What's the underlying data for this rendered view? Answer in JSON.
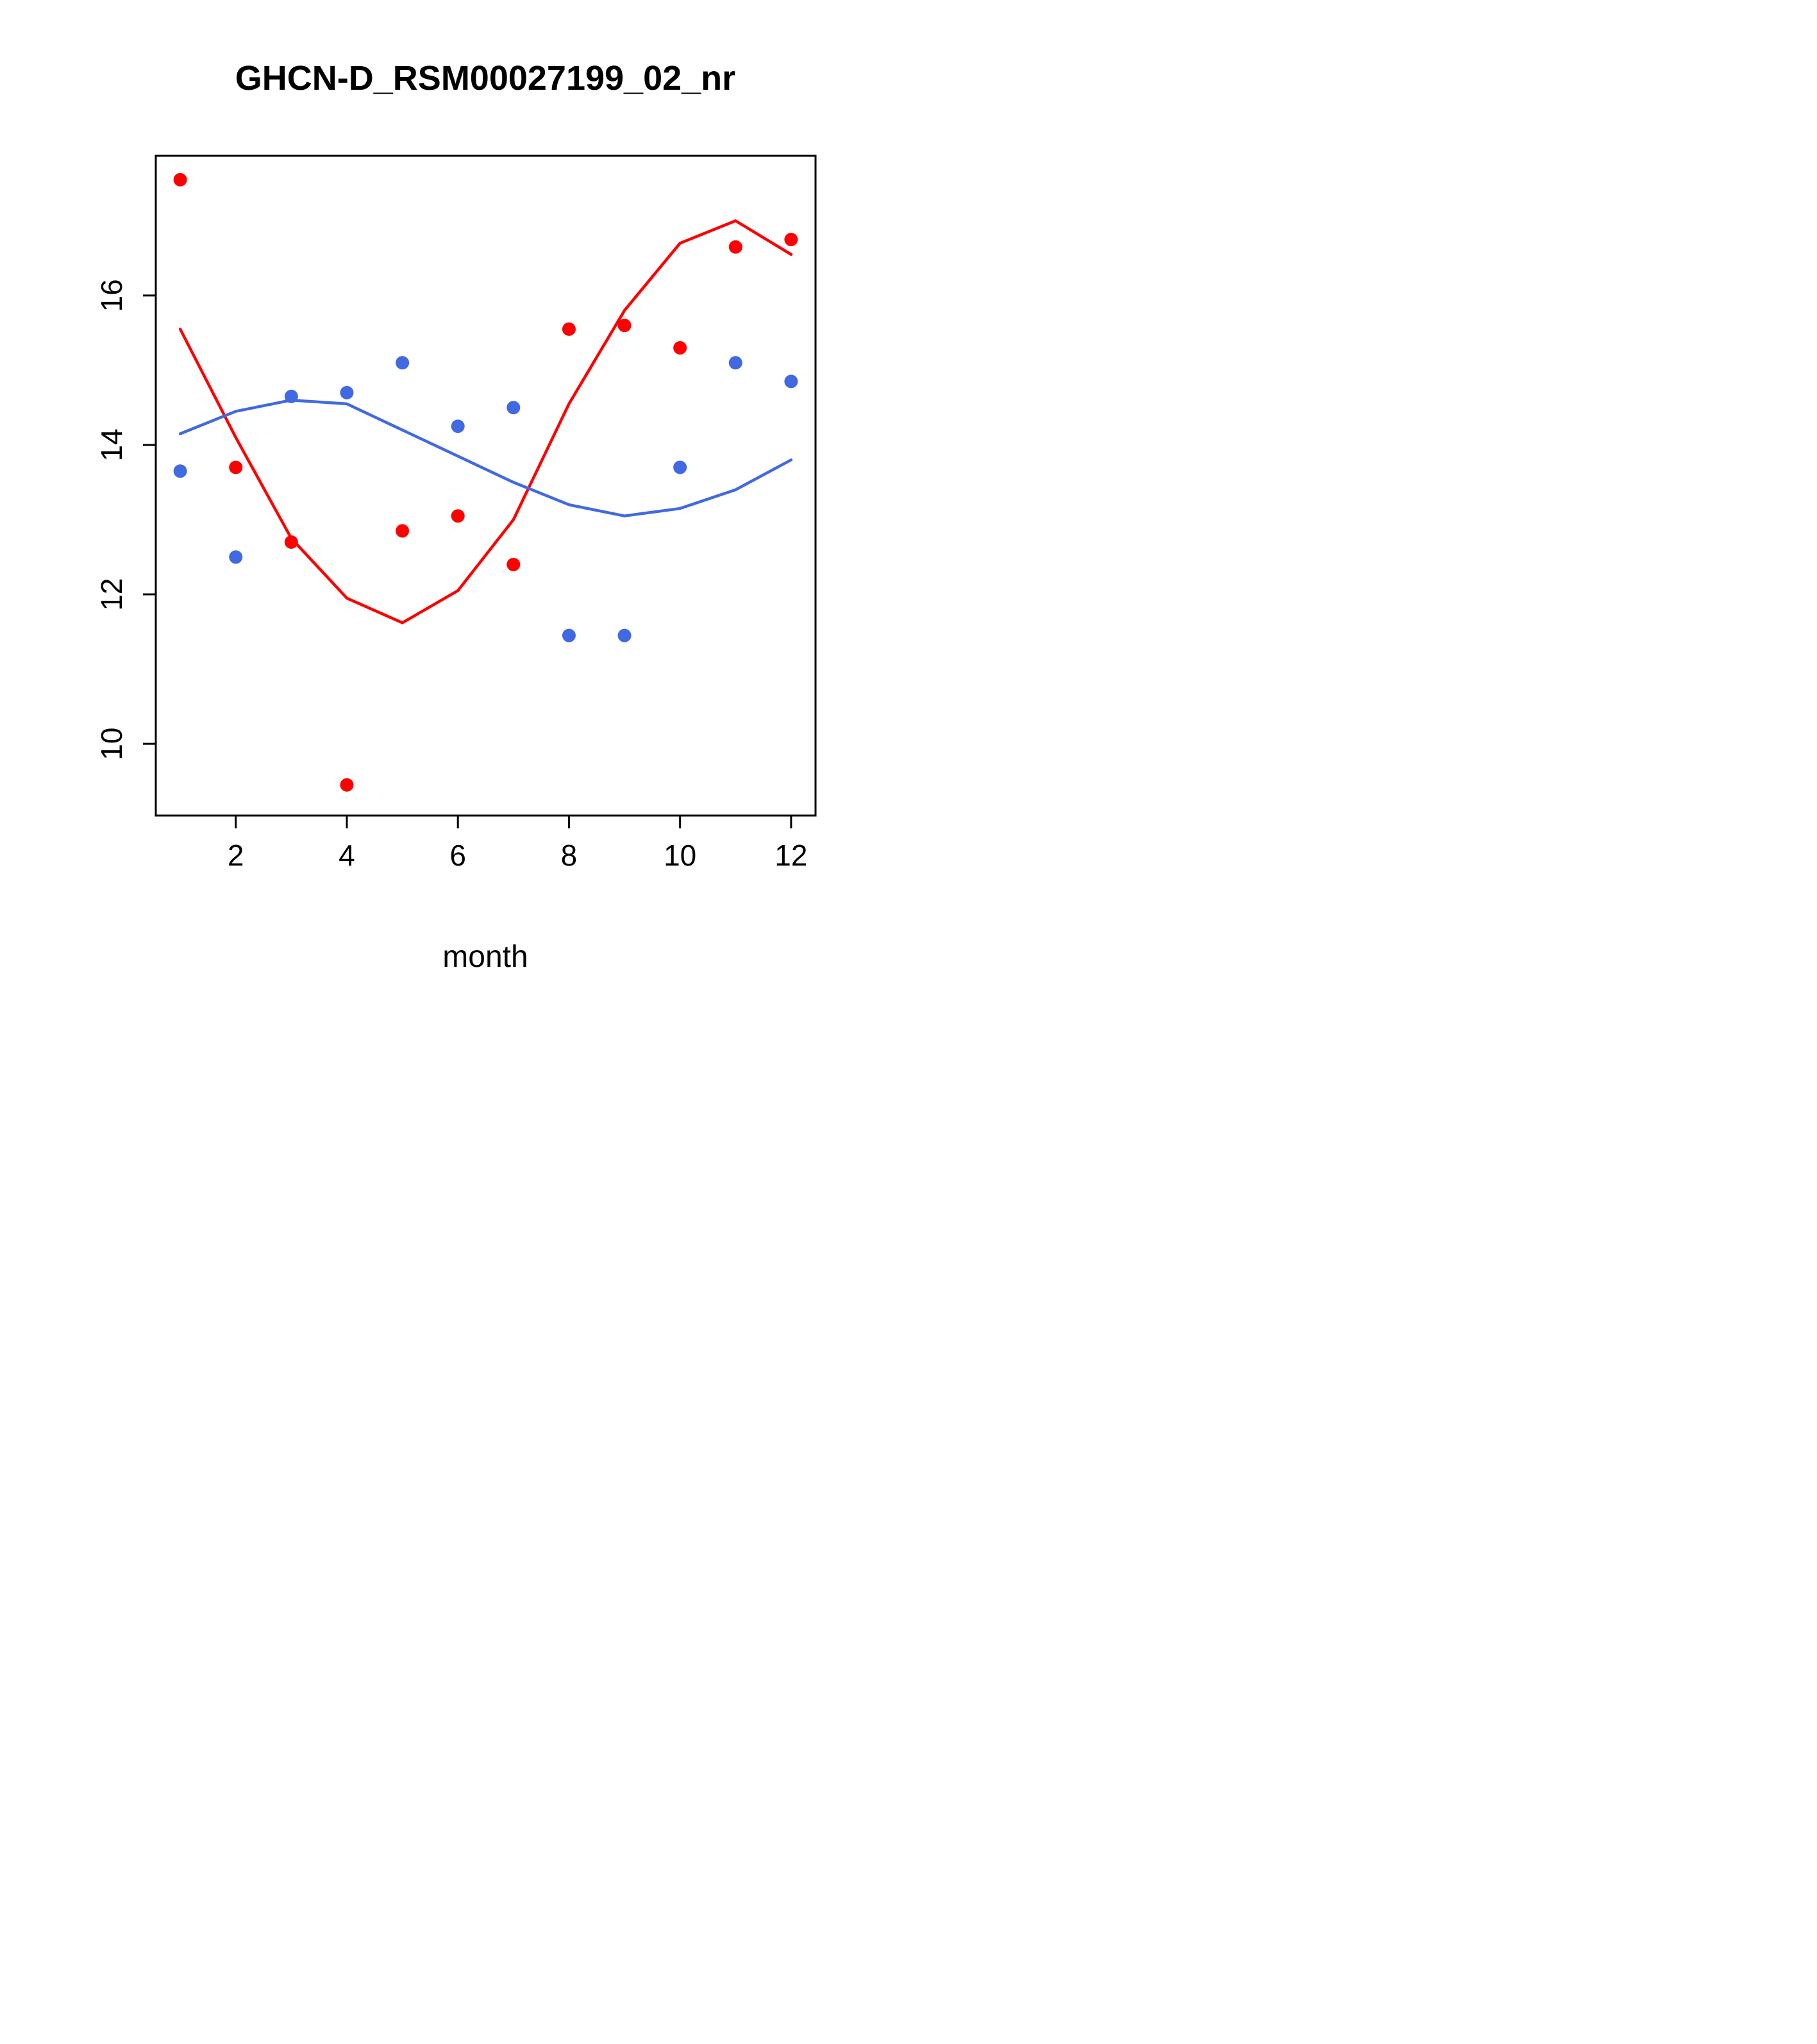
{
  "chart_data": {
    "type": "scatter",
    "title": "GHCN-D_RSM00027199_02_nr",
    "xlabel": "month",
    "ylabel": "",
    "xlim": [
      0.56,
      12.44
    ],
    "ylim": [
      9.04,
      17.87
    ],
    "x_ticks": [
      2,
      4,
      6,
      8,
      10,
      12
    ],
    "y_ticks": [
      10,
      12,
      14,
      16
    ],
    "x": [
      1,
      2,
      3,
      4,
      5,
      6,
      7,
      8,
      9,
      10,
      11,
      12
    ],
    "series": [
      {
        "name": "red-points",
        "kind": "points",
        "color": "#ff0000",
        "values": [
          17.55,
          13.7,
          12.7,
          9.45,
          12.85,
          13.05,
          12.4,
          15.55,
          15.6,
          15.3,
          16.65,
          16.75
        ]
      },
      {
        "name": "blue-points",
        "kind": "points",
        "color": "#4169e1",
        "values": [
          13.65,
          12.5,
          14.65,
          14.7,
          15.1,
          14.25,
          14.5,
          11.45,
          11.45,
          13.7,
          15.1,
          14.85
        ]
      },
      {
        "name": "red-smooth-line",
        "kind": "line",
        "color": "#ff0000",
        "values": [
          15.55,
          14.1,
          12.75,
          11.95,
          11.62,
          12.05,
          13.0,
          14.55,
          15.8,
          16.7,
          17.0,
          16.55
        ]
      },
      {
        "name": "blue-smooth-line",
        "kind": "line",
        "color": "#4169e1",
        "values": [
          14.15,
          14.45,
          14.6,
          14.55,
          14.2,
          13.85,
          13.5,
          13.2,
          13.05,
          13.15,
          13.4,
          13.8
        ]
      }
    ],
    "style": {
      "axis_color": "#000000",
      "background": "#ffffff",
      "grid": "off",
      "legend": "none",
      "point_radius": 10.5,
      "line_width": 4.5
    }
  }
}
